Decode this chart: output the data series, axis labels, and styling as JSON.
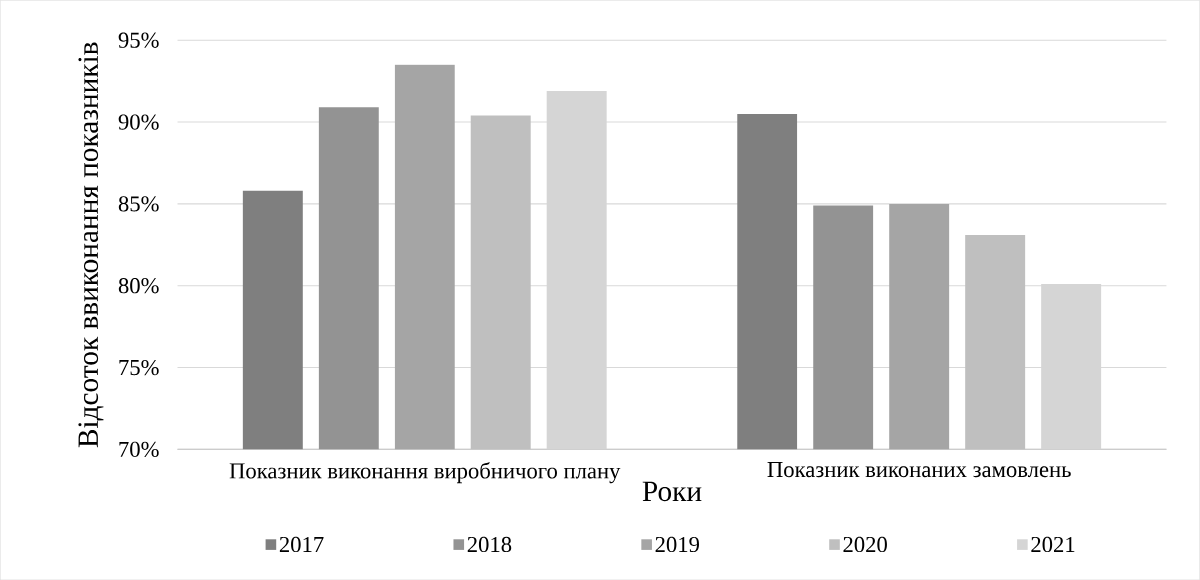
{
  "chart_data": {
    "type": "bar",
    "xlabel": "Роки",
    "ylabel": "Відсоток ввиконання показників",
    "categories": [
      "Показник виконання виробничого плану",
      "Показник виконаних замовлень"
    ],
    "series": [
      {
        "name": "2017",
        "color": "#7f7f7f",
        "values": [
          85.8,
          90.5
        ]
      },
      {
        "name": "2018",
        "color": "#939393",
        "values": [
          90.9,
          84.9
        ]
      },
      {
        "name": "2019",
        "color": "#a5a5a5",
        "values": [
          93.5,
          85.0
        ]
      },
      {
        "name": "2020",
        "color": "#bfbfbf",
        "values": [
          90.4,
          83.1
        ]
      },
      {
        "name": "2021",
        "color": "#d5d5d5",
        "values": [
          91.9,
          80.1
        ]
      }
    ],
    "ylim": [
      70,
      95
    ],
    "yticks": [
      {
        "value": 70,
        "label": "70%"
      },
      {
        "value": 75,
        "label": "75%"
      },
      {
        "value": 80,
        "label": "80%"
      },
      {
        "value": 85,
        "label": "85%"
      },
      {
        "value": 90,
        "label": "90%"
      },
      {
        "value": 95,
        "label": "95%"
      }
    ],
    "grid": "y",
    "legend": "bottom"
  }
}
